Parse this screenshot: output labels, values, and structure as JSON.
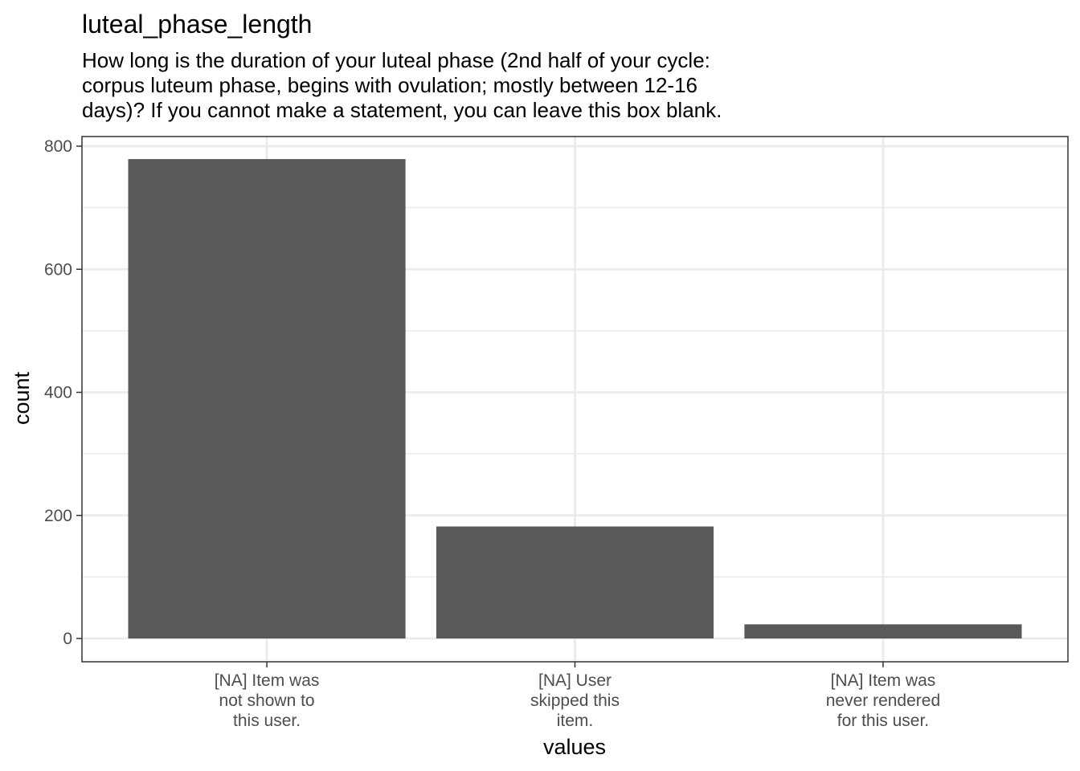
{
  "chart_data": {
    "type": "bar",
    "title": "luteal_phase_length",
    "subtitle": [
      "How long is the duration of your luteal phase (2nd half of your cycle:",
      "corpus luteum phase, begins with ovulation; mostly between 12-16",
      "days)? If you cannot make a statement, you can leave this box blank."
    ],
    "xlabel": "values",
    "ylabel": "count",
    "categories": [
      [
        "[NA] Item was",
        "not shown to",
        "this user."
      ],
      [
        "[NA] User",
        "skipped this",
        "item."
      ],
      [
        "[NA] Item was",
        "never rendered",
        "for this user."
      ]
    ],
    "values": [
      779,
      182,
      23
    ],
    "ylim": [
      0,
      840
    ],
    "yticks": [
      "0",
      "200",
      "400",
      "600",
      "800"
    ],
    "grid": true,
    "bar_color": "#595959",
    "grid_color": "#ebebeb",
    "panel_border_color": "#333333"
  }
}
